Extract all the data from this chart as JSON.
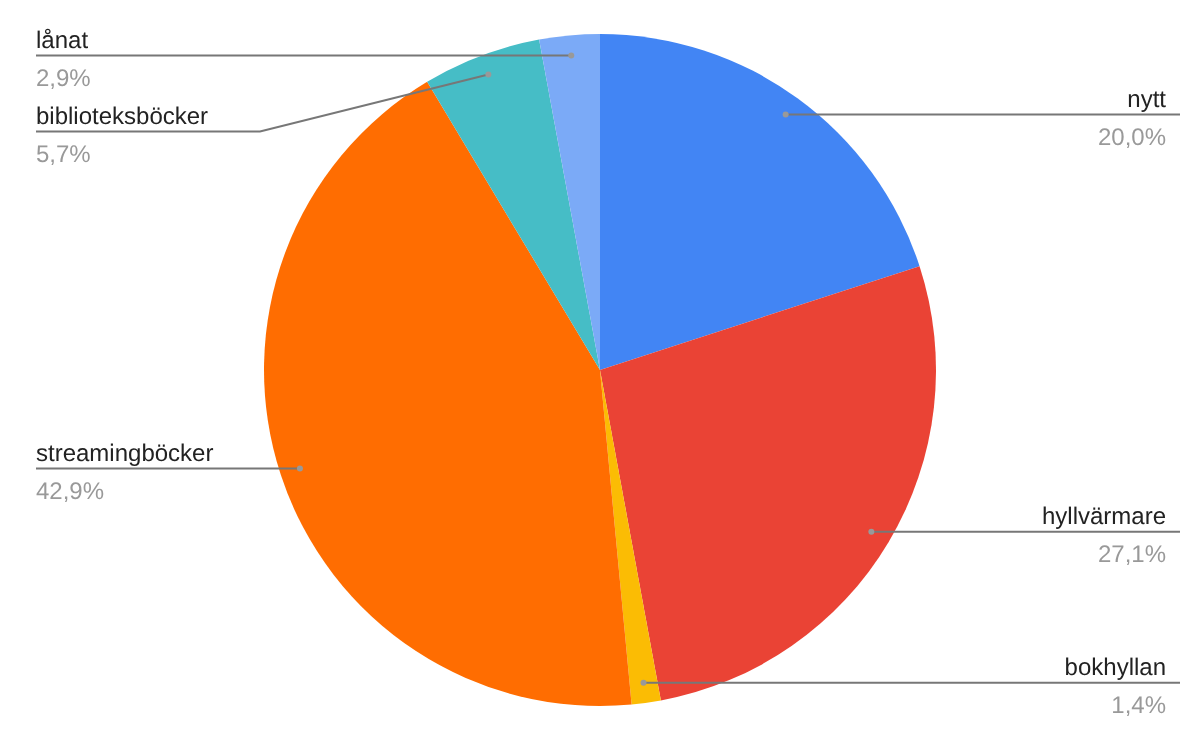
{
  "chart_data": {
    "type": "pie",
    "categories": [
      "nytt",
      "hyllvärmare",
      "bokhyllan",
      "streamingböcker",
      "biblioteksböcker",
      "lånat"
    ],
    "values": [
      20.0,
      27.1,
      1.4,
      42.9,
      5.7,
      2.9
    ],
    "colors": [
      "#4285f4",
      "#ea4335",
      "#fbbc04",
      "#ff6d01",
      "#46bdc6",
      "#7baaf7"
    ],
    "value_labels": [
      "20,0%",
      "27,1%",
      "1,4%",
      "42,9%",
      "5,7%",
      "2,9%"
    ],
    "legend": false
  }
}
